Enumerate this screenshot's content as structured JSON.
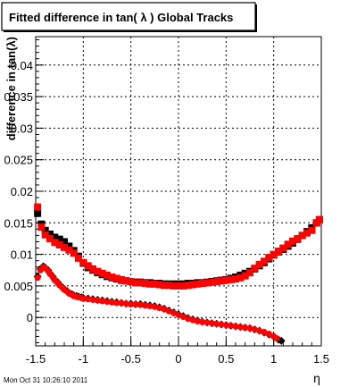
{
  "chart_data": {
    "type": "scatter",
    "title": "Fitted difference in tan( λ )  Global Tracks",
    "xlabel": "η",
    "ylabel": "difference in tan(λ)",
    "xlim": [
      -1.5,
      1.5
    ],
    "ylim": [
      -0.0045,
      0.0445
    ],
    "grid": true,
    "x_ticks": [
      -1.5,
      -1,
      -0.5,
      0,
      0.5,
      1,
      1.5
    ],
    "x_tick_labels": [
      "-1.5",
      "-1",
      "-0.5",
      "0",
      "0.5",
      "1",
      "1.5"
    ],
    "y_ticks": [
      0,
      0.005,
      0.01,
      0.015,
      0.02,
      0.025,
      0.03,
      0.035,
      0.04
    ],
    "y_tick_labels": [
      "0",
      "0.005",
      "0.01",
      "0.015",
      "0.02",
      "0.025",
      "0.03",
      "0.035",
      "0.04"
    ],
    "series": [
      {
        "marker": "square",
        "color": "#000000",
        "x": [
          -1.48,
          -1.44,
          -1.4,
          -1.35,
          -1.3,
          -1.25,
          -1.2,
          -1.15,
          -1.1,
          -1.05,
          -1.0,
          -0.95,
          -0.9,
          -0.85,
          -0.8,
          -0.75,
          -0.7,
          -0.65,
          -0.6,
          -0.55,
          -0.5,
          -0.45,
          -0.4,
          -0.35,
          -0.3,
          -0.25,
          -0.2,
          -0.15,
          -0.1,
          -0.05,
          0.0,
          0.05,
          0.1,
          0.15,
          0.2,
          0.25,
          0.3,
          0.35,
          0.4,
          0.45,
          0.5,
          0.55,
          0.6,
          0.65,
          0.7,
          0.75,
          0.8,
          0.85,
          0.9,
          0.95,
          1.0,
          1.05,
          1.1,
          1.15,
          1.2,
          1.25,
          1.3,
          1.35,
          1.4,
          1.45,
          1.48
        ],
        "y": [
          0.0165,
          0.0148,
          0.0138,
          0.0132,
          0.0127,
          0.0124,
          0.012,
          0.0113,
          0.0106,
          0.0097,
          0.0086,
          0.0079,
          0.0075,
          0.0071,
          0.0068,
          0.0065,
          0.0063,
          0.0061,
          0.0059,
          0.0058,
          0.0057,
          0.0056,
          0.0056,
          0.0055,
          0.0055,
          0.0054,
          0.0054,
          0.0053,
          0.0053,
          0.0053,
          0.0053,
          0.0053,
          0.0054,
          0.0054,
          0.0055,
          0.0055,
          0.0056,
          0.0057,
          0.0058,
          0.0059,
          0.006,
          0.0062,
          0.0064,
          0.0067,
          0.007,
          0.0073,
          0.0077,
          0.0082,
          0.0087,
          0.0093,
          0.0099,
          0.0104,
          0.0108,
          0.0113,
          0.0118,
          0.0124,
          0.013,
          0.0136,
          0.0142,
          0.015,
          0.0155
        ]
      },
      {
        "marker": "square",
        "color": "#ff0000",
        "x": [
          -1.48,
          -1.44,
          -1.4,
          -1.35,
          -1.3,
          -1.25,
          -1.2,
          -1.15,
          -1.1,
          -1.05,
          -1.0,
          -0.95,
          -0.9,
          -0.85,
          -0.8,
          -0.75,
          -0.7,
          -0.65,
          -0.6,
          -0.55,
          -0.5,
          -0.45,
          -0.4,
          -0.35,
          -0.3,
          -0.25,
          -0.2,
          -0.15,
          -0.1,
          -0.05,
          0.0,
          0.05,
          0.1,
          0.15,
          0.2,
          0.25,
          0.3,
          0.35,
          0.4,
          0.45,
          0.5,
          0.55,
          0.6,
          0.65,
          0.7,
          0.75,
          0.8,
          0.85,
          0.9,
          0.95,
          1.0,
          1.05,
          1.1,
          1.15,
          1.2,
          1.25,
          1.3,
          1.35,
          1.4,
          1.45,
          1.48
        ],
        "y": [
          0.0175,
          0.0143,
          0.0131,
          0.0125,
          0.0119,
          0.0115,
          0.0111,
          0.0107,
          0.0102,
          0.0094,
          0.0087,
          0.0082,
          0.0077,
          0.0073,
          0.007,
          0.0067,
          0.0064,
          0.0062,
          0.006,
          0.0058,
          0.0057,
          0.0055,
          0.0055,
          0.0054,
          0.0053,
          0.0053,
          0.0052,
          0.0051,
          0.0051,
          0.005,
          0.005,
          0.005,
          0.0051,
          0.0052,
          0.0053,
          0.0054,
          0.0055,
          0.0056,
          0.0057,
          0.0058,
          0.0059,
          0.006,
          0.0061,
          0.0063,
          0.0066,
          0.0071,
          0.0078,
          0.0084,
          0.0089,
          0.0095,
          0.01,
          0.0105,
          0.011,
          0.0116,
          0.0121,
          0.0125,
          0.013,
          0.0134,
          0.0138,
          0.015,
          0.0155
        ]
      },
      {
        "marker": "diamond",
        "color": "#000000",
        "x": [
          -1.48,
          -1.45,
          -1.42,
          -1.4,
          -1.37,
          -1.35,
          -1.32,
          -1.3,
          -1.27,
          -1.25,
          -1.22,
          -1.2,
          -1.17,
          -1.15,
          -1.12,
          -1.1,
          -1.07,
          -1.05,
          -1.02,
          -1.0,
          -0.95,
          -0.9,
          -0.85,
          -0.8,
          -0.75,
          -0.7,
          -0.65,
          -0.6,
          -0.55,
          -0.5,
          -0.45,
          -0.4,
          -0.35,
          -0.3,
          -0.25,
          -0.2,
          -0.15,
          -0.1,
          -0.05,
          0.0,
          0.05,
          0.1,
          0.15,
          0.2,
          0.25,
          0.3,
          0.35,
          0.4,
          0.45,
          0.5,
          0.55,
          0.6,
          0.65,
          0.7,
          0.75,
          0.8,
          0.85,
          0.9,
          0.95,
          1.0,
          1.05,
          1.08
        ],
        "y": [
          0.0065,
          0.0077,
          0.0081,
          0.0079,
          0.0075,
          0.007,
          0.0065,
          0.006,
          0.0056,
          0.0052,
          0.0048,
          0.0045,
          0.0042,
          0.0039,
          0.0037,
          0.0035,
          0.0034,
          0.0033,
          0.0032,
          0.0031,
          0.003,
          0.0029,
          0.0028,
          0.0027,
          0.0026,
          0.0025,
          0.0024,
          0.0023,
          0.0022,
          0.0022,
          0.0021,
          0.0021,
          0.002,
          0.0019,
          0.0018,
          0.0016,
          0.0014,
          0.0011,
          0.0008,
          0.0005,
          0.0002,
          -0.0001,
          -0.0003,
          -0.0005,
          -0.0007,
          -0.0008,
          -0.0009,
          -0.001,
          -0.0011,
          -0.0012,
          -0.0013,
          -0.0014,
          -0.0015,
          -0.0016,
          -0.0017,
          -0.0019,
          -0.0021,
          -0.0024,
          -0.0027,
          -0.003,
          -0.0035,
          -0.0037
        ]
      },
      {
        "marker": "circle",
        "color": "#ff0000",
        "x": [
          -1.48,
          -1.45,
          -1.42,
          -1.4,
          -1.37,
          -1.35,
          -1.32,
          -1.3,
          -1.27,
          -1.25,
          -1.22,
          -1.2,
          -1.17,
          -1.15,
          -1.12,
          -1.1,
          -1.07,
          -1.05,
          -1.02,
          -1.0,
          -0.95,
          -0.9,
          -0.85,
          -0.8,
          -0.75,
          -0.7,
          -0.65,
          -0.6,
          -0.55,
          -0.5,
          -0.45,
          -0.4,
          -0.35,
          -0.3,
          -0.25,
          -0.2,
          -0.15,
          -0.1,
          -0.05,
          0.0,
          0.05,
          0.1,
          0.15,
          0.2,
          0.25,
          0.3,
          0.35,
          0.4,
          0.45,
          0.5,
          0.55,
          0.6,
          0.65,
          0.7,
          0.75,
          0.8,
          0.85,
          0.9,
          0.95,
          1.0,
          1.03
        ],
        "y": [
          0.0063,
          0.0075,
          0.008,
          0.0078,
          0.0074,
          0.0069,
          0.0064,
          0.0059,
          0.0055,
          0.0051,
          0.0047,
          0.0044,
          0.0041,
          0.0038,
          0.0036,
          0.0034,
          0.0033,
          0.0032,
          0.0031,
          0.003,
          0.0029,
          0.0028,
          0.0027,
          0.0026,
          0.0025,
          0.0024,
          0.0023,
          0.0023,
          0.0022,
          0.0021,
          0.0021,
          0.002,
          0.0019,
          0.0018,
          0.0017,
          0.0015,
          0.0013,
          0.001,
          0.0007,
          0.0004,
          0.0001,
          -0.0002,
          -0.0004,
          -0.0006,
          -0.0007,
          -0.0008,
          -0.0009,
          -0.001,
          -0.0011,
          -0.0012,
          -0.0013,
          -0.0014,
          -0.0015,
          -0.0016,
          -0.0017,
          -0.0019,
          -0.0021,
          -0.0023,
          -0.0026,
          -0.003,
          -0.0033
        ]
      }
    ]
  },
  "timestamp": "Mon Oct 31 10:26:10 2011"
}
